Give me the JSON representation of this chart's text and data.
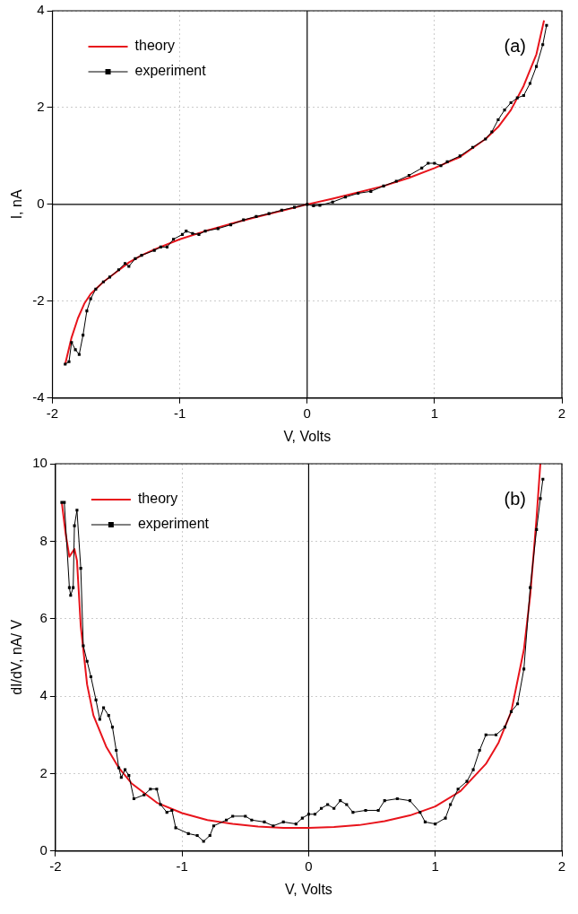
{
  "chart_data": [
    {
      "type": "line",
      "xlabel": "V, Volts",
      "ylabel": "I, nA",
      "xlim": [
        -2,
        2
      ],
      "ylim": [
        -4,
        4
      ],
      "xticks": [
        -2,
        -1,
        0,
        1,
        2
      ],
      "yticks": [
        -4,
        -2,
        0,
        2,
        4
      ],
      "grid": true,
      "legend": "top left",
      "annotations": [
        "(a)"
      ],
      "ref_lines": [
        {
          "axis": "x",
          "value": 0,
          "color": "#000000"
        },
        {
          "axis": "y",
          "value": 0,
          "color": "#000000"
        }
      ],
      "series": [
        {
          "name": "theory",
          "color": "#e8141c",
          "marker": "none",
          "line_style": "solid",
          "x": [
            -1.9,
            -1.85,
            -1.8,
            -1.75,
            -1.7,
            -1.6,
            -1.5,
            -1.4,
            -1.3,
            -1.2,
            -1.0,
            -0.8,
            -0.6,
            -0.4,
            -0.2,
            0,
            0.2,
            0.4,
            0.6,
            0.8,
            1.0,
            1.2,
            1.4,
            1.5,
            1.6,
            1.7,
            1.8,
            1.86
          ],
          "values": [
            -3.3,
            -2.75,
            -2.35,
            -2.05,
            -1.85,
            -1.6,
            -1.4,
            -1.2,
            -1.05,
            -0.93,
            -0.72,
            -0.55,
            -0.4,
            -0.26,
            -0.13,
            0,
            0.12,
            0.25,
            0.38,
            0.55,
            0.75,
            0.98,
            1.35,
            1.6,
            1.95,
            2.45,
            3.1,
            3.8
          ]
        },
        {
          "name": "experiment",
          "color": "#000000",
          "marker": "square",
          "line_style": "solid",
          "x": [
            -1.9,
            -1.87,
            -1.85,
            -1.82,
            -1.79,
            -1.76,
            -1.73,
            -1.7,
            -1.66,
            -1.6,
            -1.55,
            -1.48,
            -1.43,
            -1.4,
            -1.35,
            -1.3,
            -1.2,
            -1.15,
            -1.1,
            -1.05,
            -0.98,
            -0.95,
            -0.9,
            -0.85,
            -0.8,
            -0.7,
            -0.6,
            -0.5,
            -0.4,
            -0.3,
            -0.2,
            -0.1,
            0,
            0.05,
            0.1,
            0.2,
            0.3,
            0.4,
            0.5,
            0.6,
            0.7,
            0.8,
            0.9,
            0.95,
            1.0,
            1.05,
            1.1,
            1.2,
            1.3,
            1.4,
            1.45,
            1.5,
            1.55,
            1.6,
            1.65,
            1.7,
            1.75,
            1.8,
            1.85,
            1.88
          ],
          "values": [
            -3.3,
            -3.25,
            -2.85,
            -3.0,
            -3.1,
            -2.7,
            -2.2,
            -1.95,
            -1.75,
            -1.6,
            -1.5,
            -1.35,
            -1.22,
            -1.28,
            -1.12,
            -1.05,
            -0.95,
            -0.88,
            -0.88,
            -0.72,
            -0.62,
            -0.55,
            -0.6,
            -0.62,
            -0.55,
            -0.5,
            -0.42,
            -0.32,
            -0.25,
            -0.19,
            -0.12,
            -0.06,
            0,
            -0.03,
            -0.02,
            0.05,
            0.15,
            0.23,
            0.27,
            0.38,
            0.48,
            0.6,
            0.75,
            0.85,
            0.85,
            0.8,
            0.88,
            1.0,
            1.18,
            1.35,
            1.5,
            1.75,
            1.95,
            2.1,
            2.2,
            2.25,
            2.5,
            2.85,
            3.3,
            3.7
          ]
        }
      ]
    },
    {
      "type": "line",
      "xlabel": "V, Volts",
      "ylabel": "dI/dV, nA/ V",
      "xlim": [
        -2,
        2
      ],
      "ylim": [
        0,
        10
      ],
      "xticks": [
        -2,
        -1,
        0,
        1,
        2
      ],
      "yticks": [
        0,
        2,
        4,
        6,
        8,
        10
      ],
      "grid": true,
      "legend": "top left",
      "annotations": [
        "(b)"
      ],
      "ref_lines": [
        {
          "axis": "x",
          "value": 0,
          "color": "#000000"
        }
      ],
      "series": [
        {
          "name": "theory",
          "color": "#e8141c",
          "marker": "none",
          "line_style": "solid",
          "x": [
            -1.95,
            -1.92,
            -1.89,
            -1.85,
            -1.83,
            -1.8,
            -1.75,
            -1.7,
            -1.6,
            -1.5,
            -1.4,
            -1.2,
            -1.0,
            -0.8,
            -0.6,
            -0.4,
            -0.2,
            0,
            0.2,
            0.4,
            0.6,
            0.8,
            1.0,
            1.2,
            1.4,
            1.5,
            1.6,
            1.7,
            1.75,
            1.8,
            1.83
          ],
          "values": [
            9.0,
            8.2,
            7.6,
            7.8,
            7.5,
            5.8,
            4.3,
            3.5,
            2.7,
            2.15,
            1.75,
            1.25,
            0.98,
            0.8,
            0.7,
            0.63,
            0.6,
            0.6,
            0.62,
            0.67,
            0.77,
            0.92,
            1.15,
            1.55,
            2.25,
            2.8,
            3.6,
            5.2,
            6.6,
            8.6,
            10
          ]
        },
        {
          "name": "experiment",
          "color": "#000000",
          "marker": "square",
          "line_style": "solid",
          "x": [
            -1.95,
            -1.93,
            -1.89,
            -1.88,
            -1.86,
            -1.85,
            -1.83,
            -1.8,
            -1.78,
            -1.75,
            -1.72,
            -1.68,
            -1.65,
            -1.62,
            -1.58,
            -1.55,
            -1.52,
            -1.5,
            -1.48,
            -1.45,
            -1.42,
            -1.38,
            -1.3,
            -1.25,
            -1.2,
            -1.17,
            -1.12,
            -1.08,
            -1.05,
            -0.95,
            -0.88,
            -0.83,
            -0.78,
            -0.75,
            -0.65,
            -0.6,
            -0.5,
            -0.45,
            -0.35,
            -0.28,
            -0.2,
            -0.1,
            -0.05,
            0,
            0.05,
            0.1,
            0.15,
            0.2,
            0.25,
            0.3,
            0.35,
            0.45,
            0.55,
            0.6,
            0.7,
            0.8,
            0.88,
            0.92,
            1.0,
            1.08,
            1.12,
            1.18,
            1.25,
            1.3,
            1.35,
            1.4,
            1.48,
            1.55,
            1.6,
            1.65,
            1.7,
            1.75,
            1.8,
            1.83,
            1.85
          ],
          "values": [
            9.0,
            9.0,
            6.8,
            6.6,
            6.8,
            8.4,
            8.8,
            7.3,
            5.3,
            4.9,
            4.5,
            3.9,
            3.4,
            3.7,
            3.5,
            3.2,
            2.6,
            2.15,
            1.9,
            2.1,
            1.95,
            1.35,
            1.45,
            1.6,
            1.6,
            1.2,
            1.0,
            1.05,
            0.6,
            0.45,
            0.4,
            0.25,
            0.4,
            0.65,
            0.8,
            0.9,
            0.9,
            0.8,
            0.75,
            0.65,
            0.75,
            0.7,
            0.85,
            0.95,
            0.95,
            1.1,
            1.2,
            1.1,
            1.3,
            1.2,
            1.0,
            1.05,
            1.05,
            1.3,
            1.35,
            1.3,
            1.0,
            0.75,
            0.7,
            0.85,
            1.2,
            1.6,
            1.8,
            2.1,
            2.6,
            3.0,
            3.0,
            3.2,
            3.6,
            3.8,
            4.7,
            6.8,
            8.3,
            9.1,
            9.6
          ]
        }
      ]
    }
  ]
}
